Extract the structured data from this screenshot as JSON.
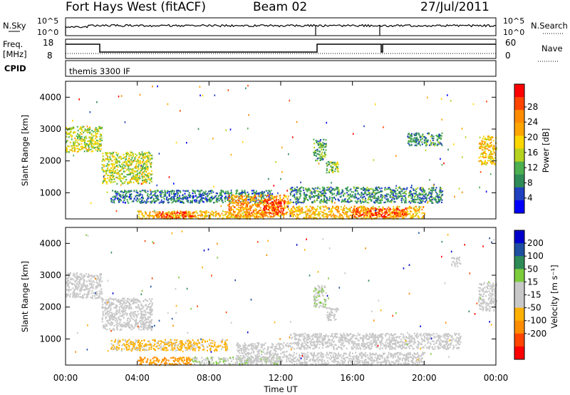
{
  "header": {
    "station": "Fort Hays West (fitACF)",
    "beam": "Beam 02",
    "date": "27/Jul/2011"
  },
  "top_panels": {
    "nsky_label": "N.Sky",
    "nsky_ticks": [
      "10^5",
      "10^0"
    ],
    "nsearch_label": "N.Search",
    "nsearch_ticks": [
      "10^5",
      "10^0"
    ],
    "freq_label": "Freq.",
    "freq_unit": "[MHz]",
    "freq_ticks": [
      "18",
      "8"
    ],
    "nave_label": "Nave",
    "nave_ticks": [
      "60",
      "0"
    ],
    "cpid_label": "CPID",
    "cpid_text": "themis 3300 IF"
  },
  "chart_data": [
    {
      "type": "heatmap",
      "panel": "power",
      "ylabel": "Slant Range [km]",
      "xlabel": "",
      "xlim": [
        0,
        24
      ],
      "ylim": [
        180,
        4500
      ],
      "x_tick_values": [
        0,
        4,
        8,
        12,
        16,
        20,
        24
      ],
      "y_tick_values": [
        1000,
        2000,
        3000,
        4000
      ],
      "y_tick_labels": [
        "1000",
        "2000",
        "3000",
        "4000"
      ],
      "colorbar_label": "Power [dB]",
      "colorbar_ticks": [
        "4",
        "8",
        "12",
        "16",
        "20",
        "24",
        "28"
      ],
      "colorbar_colors": [
        "#0000ff",
        "#2040c0",
        "#2e8b57",
        "#4caf50",
        "#b5d21e",
        "#ffd700",
        "#ffa500",
        "#ff8c00",
        "#ff4500",
        "#ff0000"
      ],
      "colorbar_range": [
        0,
        30
      ],
      "echo_regions": [
        {
          "t": [
            0.0,
            2.0
          ],
          "r": [
            2300,
            3100
          ],
          "level": 14
        },
        {
          "t": [
            2.0,
            4.8
          ],
          "r": [
            1300,
            2300
          ],
          "level": 14
        },
        {
          "t": [
            2.5,
            11.5
          ],
          "r": [
            700,
            1100
          ],
          "level": 7
        },
        {
          "t": [
            4.0,
            11.0
          ],
          "r": [
            200,
            450
          ],
          "level": 18
        },
        {
          "t": [
            5.0,
            7.2
          ],
          "r": [
            230,
            420
          ],
          "level": 26
        },
        {
          "t": [
            9.0,
            12.5
          ],
          "r": [
            250,
            950
          ],
          "level": 21
        },
        {
          "t": [
            11.0,
            12.2
          ],
          "r": [
            350,
            800
          ],
          "level": 27
        },
        {
          "t": [
            12.5,
            21.0
          ],
          "r": [
            700,
            1200
          ],
          "level": 8
        },
        {
          "t": [
            12.5,
            20.0
          ],
          "r": [
            200,
            600
          ],
          "level": 19
        },
        {
          "t": [
            16.0,
            19.0
          ],
          "r": [
            250,
            550
          ],
          "level": 25
        },
        {
          "t": [
            13.8,
            14.5
          ],
          "r": [
            2000,
            2700
          ],
          "level": 10
        },
        {
          "t": [
            14.5,
            15.2
          ],
          "r": [
            1600,
            2000
          ],
          "level": 12
        },
        {
          "t": [
            23.0,
            24.0
          ],
          "r": [
            1900,
            2800
          ],
          "level": 18
        },
        {
          "t": [
            19.0,
            21.0
          ],
          "r": [
            2500,
            2900
          ],
          "level": 8
        }
      ]
    },
    {
      "type": "heatmap",
      "panel": "velocity",
      "ylabel": "Slant Range [km]",
      "xlabel": "Time UT",
      "xlim": [
        0,
        24
      ],
      "ylim": [
        180,
        4500
      ],
      "x_tick_values": [
        0,
        4,
        8,
        12,
        16,
        20,
        24
      ],
      "x_tick_labels": [
        "00:00",
        "04:00",
        "08:00",
        "12:00",
        "16:00",
        "20:00",
        "00:00"
      ],
      "y_tick_values": [
        1000,
        2000,
        3000,
        4000
      ],
      "y_tick_labels": [
        "1000",
        "2000",
        "3000",
        "4000"
      ],
      "colorbar_label": "Velocity [m s⁻¹]",
      "colorbar_ticks": [
        "200",
        "100",
        "50",
        "15",
        "-15",
        "-50",
        "-100",
        "-200"
      ],
      "colorbar_colors": [
        "#0000cc",
        "#1e4fa0",
        "#2e8b57",
        "#7ccc3c",
        "#c8c8c8",
        "#c8c8c8",
        "#ffb000",
        "#ff8c00",
        "#ff4500",
        "#ff0000"
      ],
      "colorbar_range": [
        -250,
        250
      ],
      "echo_regions": [
        {
          "t": [
            0.0,
            2.0
          ],
          "r": [
            2300,
            3100
          ],
          "level": 0
        },
        {
          "t": [
            2.0,
            4.8
          ],
          "r": [
            1300,
            2300
          ],
          "level": 0
        },
        {
          "t": [
            2.5,
            9.0
          ],
          "r": [
            650,
            1000
          ],
          "level": -60
        },
        {
          "t": [
            4.0,
            7.0
          ],
          "r": [
            200,
            450
          ],
          "level": -110
        },
        {
          "t": [
            7.0,
            12.0
          ],
          "r": [
            200,
            450
          ],
          "level": 40
        },
        {
          "t": [
            9.5,
            12.5
          ],
          "r": [
            300,
            900
          ],
          "level": 0
        },
        {
          "t": [
            12.5,
            22.0
          ],
          "r": [
            700,
            1200
          ],
          "level": 0
        },
        {
          "t": [
            12.5,
            20.0
          ],
          "r": [
            200,
            600
          ],
          "level": 0
        },
        {
          "t": [
            13.8,
            14.5
          ],
          "r": [
            2000,
            2700
          ],
          "level": 40
        },
        {
          "t": [
            14.5,
            15.2
          ],
          "r": [
            1600,
            2000
          ],
          "level": 0
        },
        {
          "t": [
            23.0,
            24.0
          ],
          "r": [
            1900,
            2800
          ],
          "level": 0
        },
        {
          "t": [
            21.5,
            22.0
          ],
          "r": [
            3300,
            3600
          ],
          "level": 0
        }
      ]
    }
  ]
}
